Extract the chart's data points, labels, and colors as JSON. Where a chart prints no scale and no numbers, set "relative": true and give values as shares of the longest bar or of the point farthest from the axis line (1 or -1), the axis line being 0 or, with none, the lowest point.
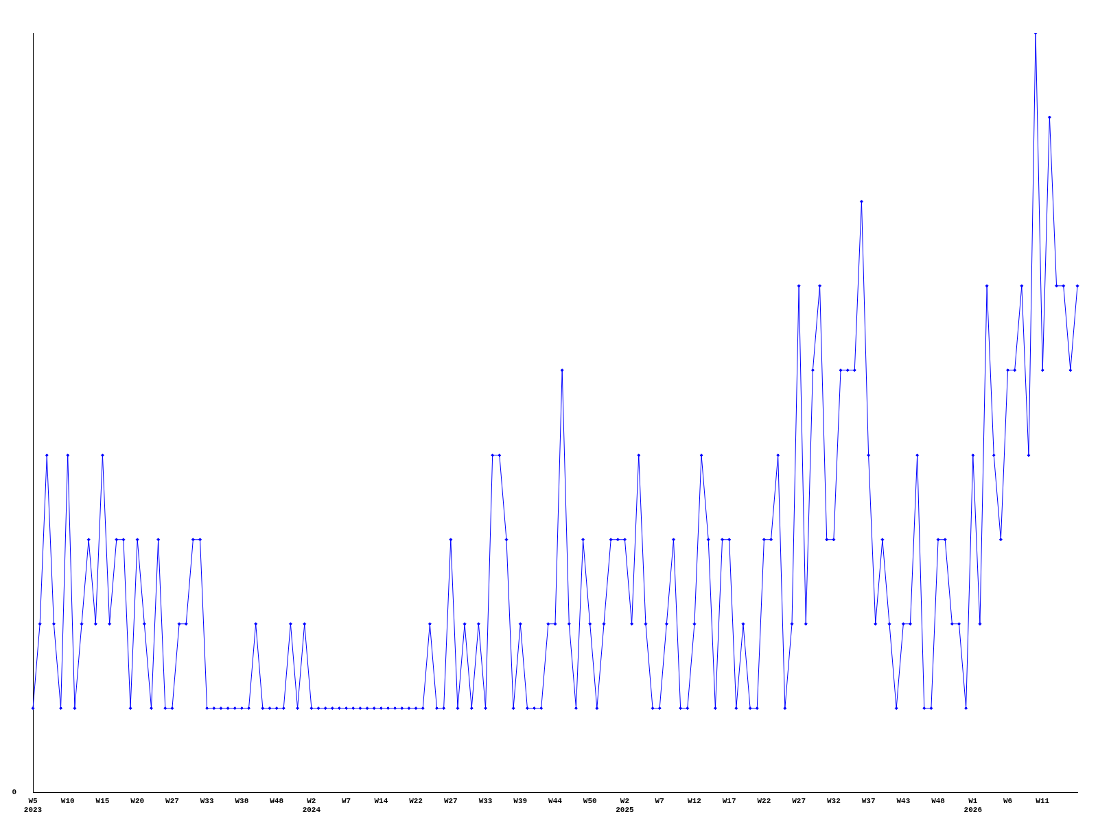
{
  "chart_data": {
    "type": "line",
    "relative": true,
    "color": "#0000ff",
    "marker": "diamond",
    "grid": false,
    "legend": false,
    "annotations": [
      "0"
    ],
    "categories": [
      "W5\n2023",
      null,
      null,
      null,
      null,
      "W10",
      null,
      null,
      null,
      null,
      "W15",
      null,
      null,
      null,
      null,
      "W20",
      null,
      null,
      null,
      null,
      "W27",
      null,
      null,
      null,
      null,
      "W33",
      null,
      null,
      null,
      null,
      "W38",
      null,
      null,
      null,
      null,
      "W48",
      null,
      null,
      null,
      null,
      "W2\n2024",
      null,
      null,
      null,
      null,
      "W7",
      null,
      null,
      null,
      null,
      "W14",
      null,
      null,
      null,
      null,
      "W22",
      null,
      null,
      null,
      null,
      "W27",
      null,
      null,
      null,
      null,
      "W33",
      null,
      null,
      null,
      null,
      "W39",
      null,
      null,
      null,
      null,
      "W44",
      null,
      null,
      null,
      null,
      "W50",
      null,
      null,
      null,
      null,
      "W2\n2025",
      null,
      null,
      null,
      null,
      "W7",
      null,
      null,
      null,
      null,
      "W12",
      null,
      null,
      null,
      null,
      "W17",
      null,
      null,
      null,
      null,
      "W22",
      null,
      null,
      null,
      null,
      "W27",
      null,
      null,
      null,
      null,
      "W32",
      null,
      null,
      null,
      null,
      "W37",
      null,
      null,
      null,
      null,
      "W43",
      null,
      null,
      null,
      null,
      "W48",
      null,
      null,
      null,
      null,
      "W1\n2026",
      null,
      null,
      null,
      null,
      "W6",
      null,
      null,
      null,
      null,
      "W11",
      null,
      null,
      null,
      null,
      null
    ],
    "values": [
      0.111,
      0.222,
      0.444,
      0.222,
      0.111,
      0.444,
      0.111,
      0.222,
      0.333,
      0.222,
      0.444,
      0.222,
      0.333,
      0.333,
      0.111,
      0.333,
      0.222,
      0.111,
      0.333,
      0.111,
      0.111,
      0.222,
      0.222,
      0.333,
      0.333,
      0.111,
      0.111,
      0.111,
      0.111,
      0.111,
      0.111,
      0.111,
      0.222,
      0.111,
      0.111,
      0.111,
      0.111,
      0.222,
      0.111,
      0.222,
      0.111,
      0.111,
      0.111,
      0.111,
      0.111,
      0.111,
      0.111,
      0.111,
      0.111,
      0.111,
      0.111,
      0.111,
      0.111,
      0.111,
      0.111,
      0.111,
      0.111,
      0.222,
      0.111,
      0.111,
      0.333,
      0.111,
      0.222,
      0.111,
      0.222,
      0.111,
      0.444,
      0.444,
      0.333,
      0.111,
      0.222,
      0.111,
      0.111,
      0.111,
      0.222,
      0.222,
      0.556,
      0.222,
      0.111,
      0.333,
      0.222,
      0.111,
      0.222,
      0.333,
      0.333,
      0.333,
      0.222,
      0.444,
      0.222,
      0.111,
      0.111,
      0.222,
      0.333,
      0.111,
      0.111,
      0.222,
      0.444,
      0.333,
      0.111,
      0.333,
      0.333,
      0.111,
      0.222,
      0.111,
      0.111,
      0.333,
      0.333,
      0.444,
      0.111,
      0.222,
      0.667,
      0.222,
      0.556,
      0.667,
      0.333,
      0.333,
      0.556,
      0.556,
      0.556,
      0.778,
      0.444,
      0.222,
      0.333,
      0.222,
      0.111,
      0.222,
      0.222,
      0.444,
      0.111,
      0.111,
      0.333,
      0.333,
      0.222,
      0.222,
      0.111,
      0.444,
      0.222,
      0.667,
      0.444,
      0.333,
      0.556,
      0.556,
      0.667,
      0.444,
      1,
      0.556,
      0.889,
      0.667,
      0.667,
      0.556,
      0.667
    ]
  }
}
